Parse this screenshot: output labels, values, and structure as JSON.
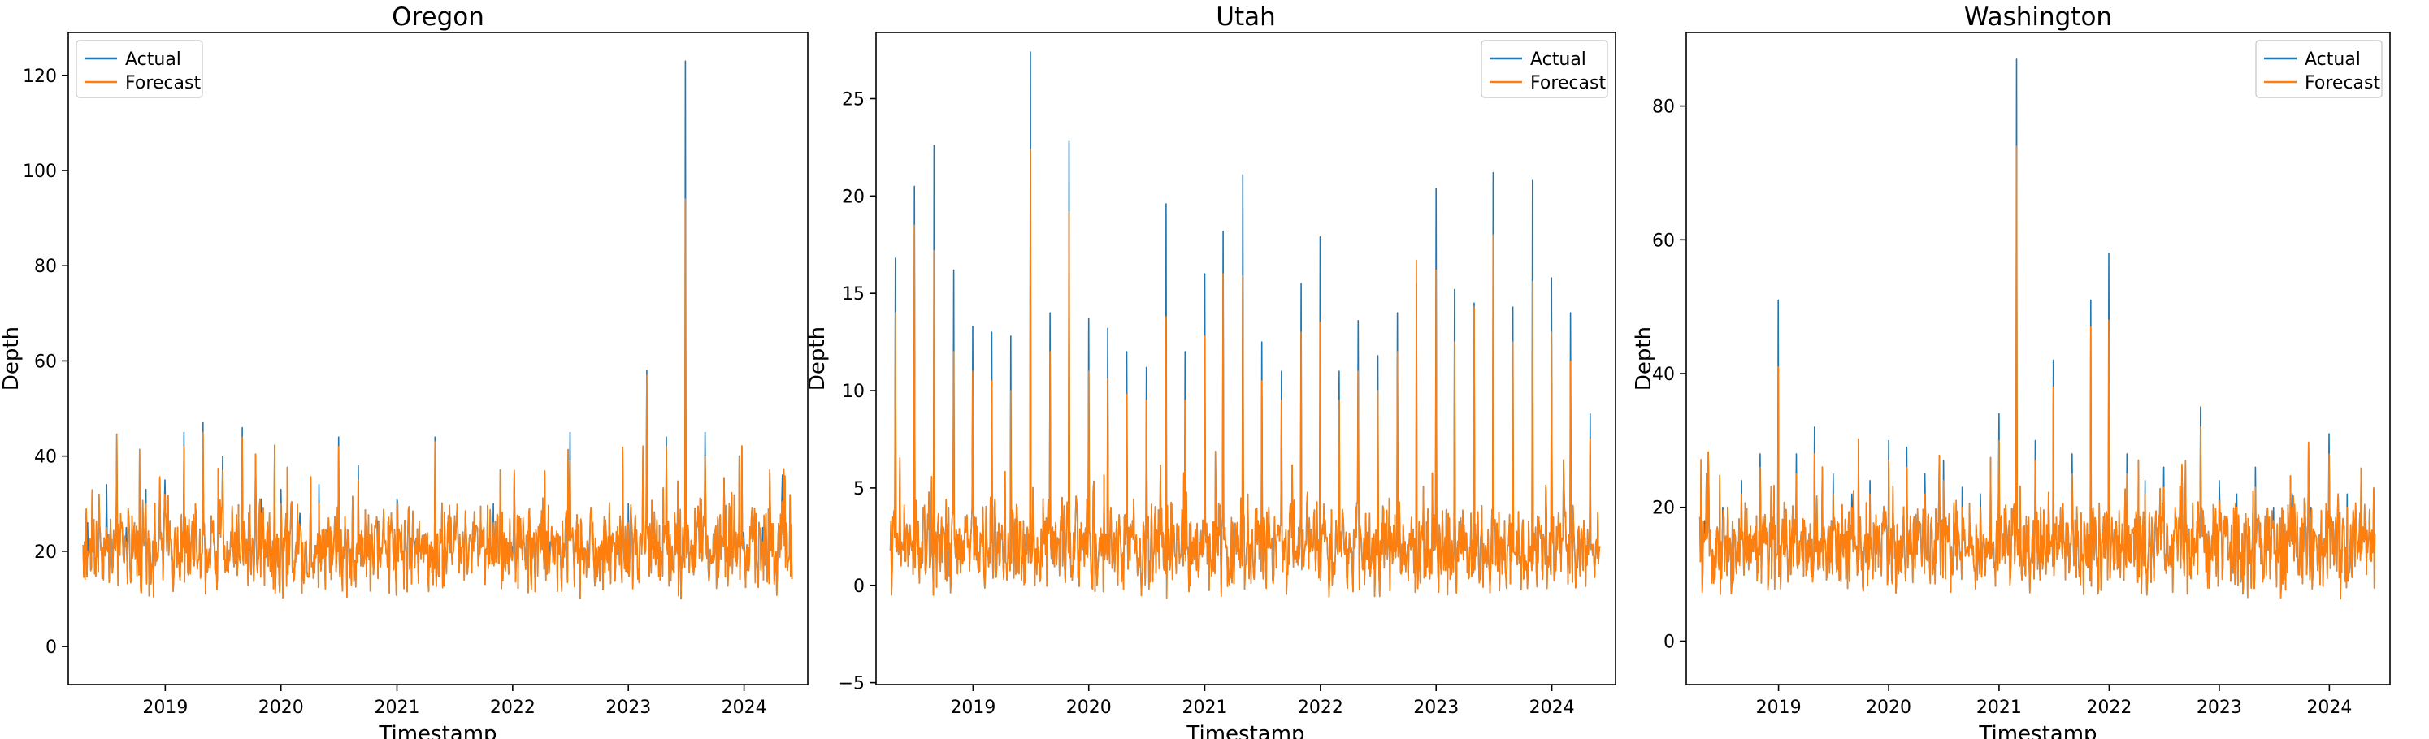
{
  "chart_data": [
    {
      "type": "line",
      "title": "Oregon",
      "xlabel": "Timestamp",
      "ylabel": "Depth",
      "x_ticks": [
        "2019",
        "2020",
        "2021",
        "2022",
        "2023",
        "2024"
      ],
      "x_range": [
        "2018-03-01",
        "2024-07-20"
      ],
      "ylim": [
        -8,
        129
      ],
      "y_ticks": [
        0,
        20,
        40,
        60,
        80,
        100,
        120
      ],
      "legend": "upper left",
      "series": [
        {
          "name": "Actual",
          "color": "#1f77b4",
          "x": [
            "2018-05",
            "2018-07",
            "2018-09",
            "2018-11",
            "2019-01",
            "2019-03",
            "2019-05",
            "2019-07",
            "2019-09",
            "2019-11",
            "2020-01",
            "2020-03",
            "2020-05",
            "2020-07",
            "2020-09",
            "2020-11",
            "2021-01",
            "2021-03",
            "2021-05",
            "2021-07",
            "2021-09",
            "2021-11",
            "2022-01",
            "2022-03",
            "2022-05",
            "2022-07",
            "2022-09",
            "2022-11",
            "2023-01",
            "2023-03",
            "2023-05",
            "2023-07",
            "2023-09",
            "2023-11",
            "2024-01",
            "2024-03",
            "2024-05"
          ],
          "values": [
            26,
            34,
            25,
            33,
            35,
            45,
            47,
            40,
            46,
            31,
            33,
            28,
            34,
            44,
            38,
            26,
            31,
            22,
            44,
            24,
            23,
            30,
            21,
            13,
            22,
            45,
            22,
            19,
            30,
            58,
            44,
            123,
            45,
            26,
            24,
            25,
            36
          ]
        },
        {
          "name": "Forecast",
          "color": "#ff7f0e",
          "x": [
            "2018-05",
            "2018-07",
            "2018-09",
            "2018-11",
            "2019-01",
            "2019-03",
            "2019-05",
            "2019-07",
            "2019-09",
            "2019-11",
            "2020-01",
            "2020-03",
            "2020-05",
            "2020-07",
            "2020-09",
            "2020-11",
            "2021-01",
            "2021-03",
            "2021-05",
            "2021-07",
            "2021-09",
            "2021-11",
            "2022-01",
            "2022-03",
            "2022-05",
            "2022-07",
            "2022-09",
            "2022-11",
            "2023-01",
            "2023-03",
            "2023-05",
            "2023-07",
            "2023-09",
            "2023-11",
            "2024-01",
            "2024-03",
            "2024-05"
          ],
          "values": [
            20,
            25,
            22,
            30,
            32,
            42,
            45,
            37,
            44,
            28,
            30,
            25,
            30,
            42,
            35,
            22,
            27,
            20,
            43,
            22,
            20,
            26,
            18,
            12,
            20,
            39,
            20,
            16,
            26,
            57,
            42,
            94,
            40,
            22,
            20,
            22,
            29
          ]
        }
      ]
    },
    {
      "type": "line",
      "title": "Utah",
      "xlabel": "Timestamp",
      "ylabel": "Depth",
      "x_ticks": [
        "2019",
        "2020",
        "2021",
        "2022",
        "2023",
        "2024"
      ],
      "x_range": [
        "2018-03-01",
        "2024-07-20"
      ],
      "ylim": [
        -5.1,
        28.4
      ],
      "y_ticks": [
        -5,
        0,
        5,
        10,
        15,
        20,
        25
      ],
      "legend": "upper right",
      "series": [
        {
          "name": "Actual",
          "color": "#1f77b4",
          "x": [
            "2018-05",
            "2018-07",
            "2018-09",
            "2018-11",
            "2019-01",
            "2019-03",
            "2019-05",
            "2019-07",
            "2019-09",
            "2019-11",
            "2020-01",
            "2020-03",
            "2020-05",
            "2020-07",
            "2020-09",
            "2020-11",
            "2021-01",
            "2021-03",
            "2021-05",
            "2021-07",
            "2021-09",
            "2021-11",
            "2022-01",
            "2022-03",
            "2022-05",
            "2022-07",
            "2022-09",
            "2022-11",
            "2023-01",
            "2023-03",
            "2023-05",
            "2023-07",
            "2023-09",
            "2023-11",
            "2024-01",
            "2024-03",
            "2024-05"
          ],
          "values": [
            16.8,
            20.5,
            22.6,
            16.2,
            13.3,
            13.0,
            12.8,
            27.4,
            14.0,
            22.8,
            13.7,
            13.2,
            12.0,
            11.2,
            19.6,
            12.0,
            16.0,
            18.2,
            21.1,
            12.5,
            11.0,
            15.5,
            17.9,
            11.0,
            13.6,
            11.8,
            14.0,
            15.5,
            20.4,
            15.2,
            14.5,
            21.2,
            14.3,
            20.8,
            15.8,
            14.0,
            8.8
          ]
        },
        {
          "name": "Forecast",
          "color": "#ff7f0e",
          "x": [
            "2018-05",
            "2018-07",
            "2018-09",
            "2018-11",
            "2019-01",
            "2019-03",
            "2019-05",
            "2019-07",
            "2019-09",
            "2019-11",
            "2020-01",
            "2020-03",
            "2020-05",
            "2020-07",
            "2020-09",
            "2020-11",
            "2021-01",
            "2021-03",
            "2021-05",
            "2021-07",
            "2021-09",
            "2021-11",
            "2022-01",
            "2022-03",
            "2022-05",
            "2022-07",
            "2022-09",
            "2022-11",
            "2023-01",
            "2023-03",
            "2023-05",
            "2023-07",
            "2023-09",
            "2023-11",
            "2024-01",
            "2024-03",
            "2024-05"
          ],
          "values": [
            14.0,
            18.5,
            17.2,
            12.0,
            11.0,
            10.5,
            10.0,
            22.4,
            12.0,
            19.2,
            11.0,
            10.6,
            9.8,
            9.5,
            13.8,
            9.5,
            12.8,
            16.0,
            15.9,
            10.5,
            9.5,
            13.0,
            13.5,
            9.5,
            11.0,
            10.0,
            12.0,
            16.7,
            16.2,
            12.5,
            14.3,
            18.0,
            12.5,
            15.6,
            13.0,
            11.5,
            7.5
          ]
        }
      ]
    },
    {
      "type": "line",
      "title": "Washington",
      "xlabel": "Timestamp",
      "ylabel": "Depth",
      "x_ticks": [
        "2019",
        "2020",
        "2021",
        "2022",
        "2023",
        "2024"
      ],
      "x_range": [
        "2018-03-01",
        "2024-07-20"
      ],
      "ylim": [
        -6.5,
        91
      ],
      "y_ticks": [
        0,
        20,
        40,
        60,
        80
      ],
      "legend": "upper right",
      "series": [
        {
          "name": "Actual",
          "color": "#1f77b4",
          "x": [
            "2018-05",
            "2018-07",
            "2018-09",
            "2018-11",
            "2019-01",
            "2019-03",
            "2019-05",
            "2019-07",
            "2019-09",
            "2019-11",
            "2020-01",
            "2020-03",
            "2020-05",
            "2020-07",
            "2020-09",
            "2020-11",
            "2021-01",
            "2021-03",
            "2021-05",
            "2021-07",
            "2021-09",
            "2021-11",
            "2022-01",
            "2022-03",
            "2022-05",
            "2022-07",
            "2022-09",
            "2022-11",
            "2023-01",
            "2023-03",
            "2023-05",
            "2023-07",
            "2023-09",
            "2023-11",
            "2024-01",
            "2024-03",
            "2024-05"
          ],
          "values": [
            18,
            20,
            24,
            28,
            51,
            28,
            32,
            25,
            22,
            24,
            30,
            29,
            25,
            27,
            23,
            22,
            34,
            87,
            30,
            42,
            28,
            51,
            58,
            28,
            24,
            26,
            22,
            35,
            24,
            22,
            26,
            20,
            22,
            20,
            31,
            22,
            18
          ]
        },
        {
          "name": "Forecast",
          "color": "#ff7f0e",
          "x": [
            "2018-05",
            "2018-07",
            "2018-09",
            "2018-11",
            "2019-01",
            "2019-03",
            "2019-05",
            "2019-07",
            "2019-09",
            "2019-11",
            "2020-01",
            "2020-03",
            "2020-05",
            "2020-07",
            "2020-09",
            "2020-11",
            "2021-01",
            "2021-03",
            "2021-05",
            "2021-07",
            "2021-09",
            "2021-11",
            "2022-01",
            "2022-03",
            "2022-05",
            "2022-07",
            "2022-09",
            "2022-11",
            "2023-01",
            "2023-03",
            "2023-05",
            "2023-07",
            "2023-09",
            "2023-11",
            "2024-01",
            "2024-03",
            "2024-05"
          ],
          "values": [
            16,
            18,
            22,
            26,
            41,
            25,
            28,
            22,
            20,
            22,
            27,
            26,
            22,
            24,
            20,
            20,
            30,
            74,
            27,
            38,
            25,
            47,
            48,
            25,
            22,
            23,
            20,
            32,
            21,
            20,
            23,
            18,
            20,
            18,
            28,
            20,
            16
          ]
        }
      ]
    }
  ]
}
